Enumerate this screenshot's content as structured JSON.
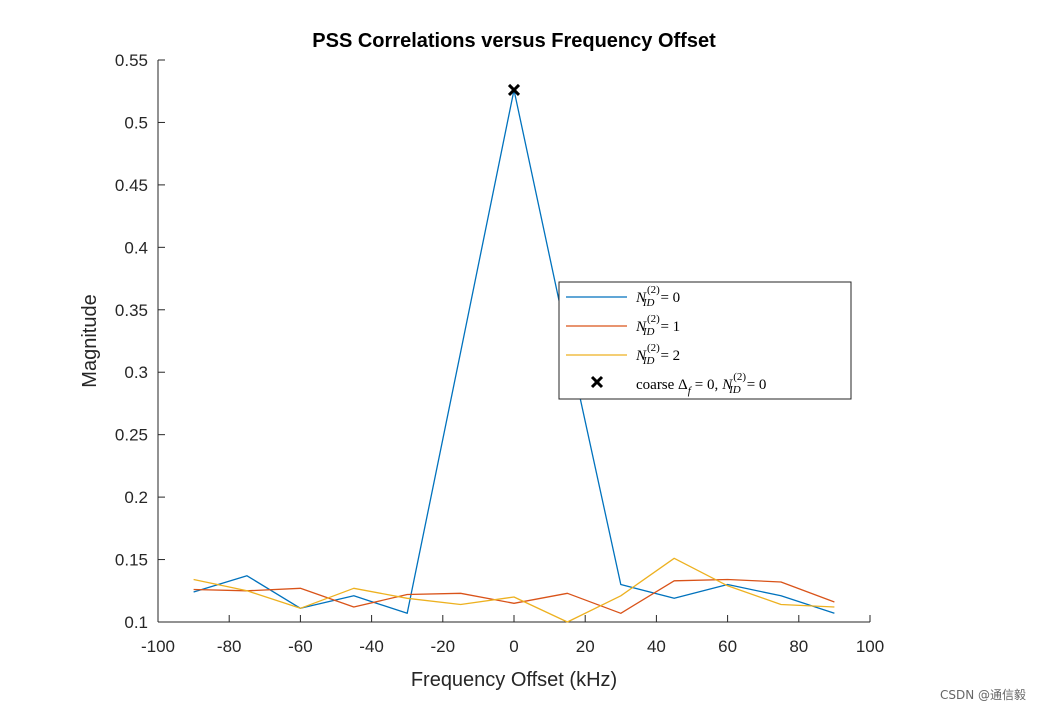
{
  "chart_data": {
    "type": "line",
    "title": "PSS Correlations versus Frequency Offset",
    "xlabel": "Frequency Offset (kHz)",
    "ylabel": "Magnitude",
    "xlim": [
      -100,
      100
    ],
    "ylim": [
      0.1,
      0.55
    ],
    "xticks": [
      -100,
      -80,
      -60,
      -40,
      -20,
      0,
      20,
      40,
      60,
      80,
      100
    ],
    "xtick_labels": [
      "-100",
      "-80",
      "-60",
      "-40",
      "-20",
      "0",
      "20",
      "40",
      "60",
      "80",
      "100"
    ],
    "yticks": [
      0.1,
      0.15,
      0.2,
      0.25,
      0.3,
      0.35,
      0.4,
      0.45,
      0.5,
      0.55
    ],
    "ytick_labels": [
      "0.1",
      "0.15",
      "0.2",
      "0.25",
      "0.3",
      "0.35",
      "0.4",
      "0.45",
      "0.5",
      "0.55"
    ],
    "x": [
      -90,
      -75,
      -60,
      -45,
      -30,
      -15,
      0,
      15,
      30,
      45,
      60,
      75,
      90
    ],
    "series": [
      {
        "name": "N_ID^(2) = 0",
        "legend_main": "N",
        "legend_sup": "(2)",
        "legend_sub": "ID",
        "legend_rhs": "= 0",
        "color": "#0072BD",
        "values": [
          0.124,
          0.137,
          0.111,
          0.121,
          0.107,
          0.316,
          0.526,
          0.326,
          0.13,
          0.119,
          0.13,
          0.121,
          0.107
        ]
      },
      {
        "name": "N_ID^(2) = 1",
        "legend_main": "N",
        "legend_sup": "(2)",
        "legend_sub": "ID",
        "legend_rhs": "= 1",
        "color": "#D95319",
        "values": [
          0.126,
          0.125,
          0.127,
          0.112,
          0.122,
          0.123,
          0.115,
          0.123,
          0.107,
          0.133,
          0.134,
          0.132,
          0.116
        ]
      },
      {
        "name": "N_ID^(2) = 2",
        "legend_main": "N",
        "legend_sup": "(2)",
        "legend_sub": "ID",
        "legend_rhs": "= 2",
        "color": "#EDB120",
        "values": [
          0.134,
          0.125,
          0.111,
          0.127,
          0.119,
          0.114,
          0.12,
          0.1,
          0.121,
          0.151,
          0.129,
          0.114,
          0.112
        ]
      }
    ],
    "marker": {
      "name": "coarse Δf = 0, N_ID^(2) = 0",
      "x": 0,
      "y": 0.526,
      "symbol": "x",
      "color": "#000000",
      "legend_text_1": "coarse Δ",
      "legend_sub_1": "f",
      "legend_text_2": "= 0,",
      "legend_main_2": "N",
      "legend_sup_2": "(2)",
      "legend_sub_2": "ID",
      "legend_rhs_2": "= 0"
    },
    "legend_position": "center-right",
    "grid": false
  },
  "watermark": "CSDN @通信毅"
}
